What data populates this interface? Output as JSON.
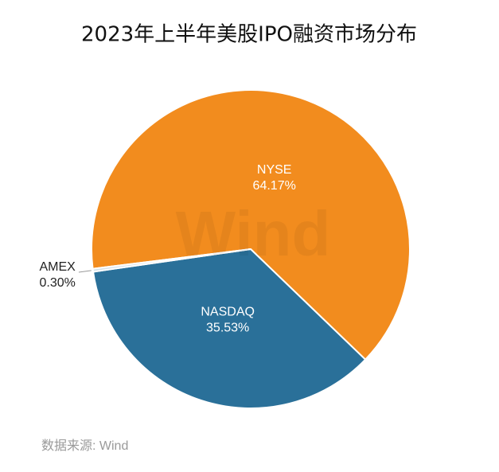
{
  "chart_data": {
    "type": "pie",
    "title": "2023年上半年美股IPO融资市场分布",
    "categories": [
      "NYSE",
      "NASDAQ",
      "AMEX"
    ],
    "values": [
      64.17,
      35.53,
      0.3
    ],
    "value_labels": [
      "64.17%",
      "35.53%",
      "0.30%"
    ],
    "colors": [
      "#f28c1e",
      "#2a7099",
      "#d6e2ea"
    ],
    "source": "数据来源: Wind",
    "watermark": "Wind"
  }
}
